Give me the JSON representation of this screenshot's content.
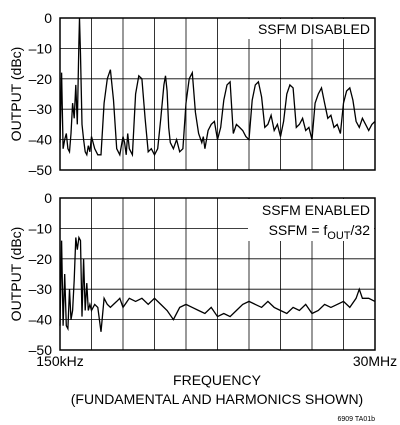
{
  "chart_data": [
    {
      "type": "line",
      "annotation": "SSFM DISABLED",
      "ylabel": "OUTPUT (dBc)",
      "ylim": [
        -50,
        0
      ],
      "yticks": [
        0,
        -10,
        -20,
        -30,
        -40,
        -50
      ],
      "ytick_labels": [
        "0",
        "–10",
        "–20",
        "–30",
        "–40",
        "–50"
      ],
      "xlim": [
        0,
        10
      ],
      "grid": true,
      "series": [
        {
          "x": [
            0,
            0.05,
            0.1,
            0.15,
            0.2,
            0.25,
            0.3,
            0.35,
            0.4,
            0.45,
            0.5,
            0.55,
            0.6,
            0.62,
            0.65,
            0.7,
            0.75,
            0.8,
            0.85,
            0.9,
            0.95,
            1.0,
            1.1,
            1.2,
            1.3,
            1.4,
            1.5,
            1.6,
            1.7,
            1.8,
            1.9,
            2.0,
            2.05,
            2.1,
            2.15,
            2.2,
            2.3,
            2.4,
            2.5,
            2.6,
            2.7,
            2.8,
            2.9,
            3.0,
            3.1,
            3.2,
            3.3,
            3.35,
            3.4,
            3.45,
            3.5,
            3.6,
            3.7,
            3.8,
            3.9,
            4.0,
            4.1,
            4.2,
            4.3,
            4.4,
            4.5,
            4.55,
            4.6,
            4.7,
            4.8,
            4.9,
            5.0,
            5.1,
            5.2,
            5.3,
            5.4,
            5.5,
            5.6,
            5.7,
            5.8,
            5.9,
            6.0,
            6.1,
            6.2,
            6.3,
            6.4,
            6.5,
            6.6,
            6.7,
            6.8,
            6.9,
            7.0,
            7.1,
            7.2,
            7.3,
            7.4,
            7.5,
            7.6,
            7.7,
            7.8,
            7.9,
            8.0,
            8.1,
            8.2,
            8.3,
            8.4,
            8.5,
            8.6,
            8.7,
            8.8,
            8.9,
            9.0,
            9.1,
            9.2,
            9.3,
            9.4,
            9.5,
            9.6,
            9.7,
            9.8,
            9.9,
            10.0
          ],
          "y": [
            -41,
            -18,
            -43,
            -40,
            -38,
            -43,
            -44,
            -38,
            -28,
            -33,
            -22,
            -35,
            -8,
            1,
            -12,
            -35,
            -40,
            -44,
            -45,
            -42,
            -44,
            -39,
            -43,
            -45,
            -45,
            -28,
            -20,
            -17,
            -27,
            -43,
            -45,
            -39,
            -41,
            -45,
            -38,
            -43,
            -45,
            -25,
            -19,
            -20,
            -33,
            -44,
            -43,
            -45,
            -43,
            -33,
            -22,
            -19,
            -24,
            -36,
            -41,
            -43,
            -40,
            -44,
            -43,
            -28,
            -20,
            -18,
            -31,
            -38,
            -41,
            -39,
            -43,
            -37,
            -35,
            -34,
            -40,
            -36,
            -27,
            -22,
            -21,
            -38,
            -35,
            -36,
            -37,
            -39,
            -40,
            -27,
            -22,
            -21,
            -26,
            -36,
            -35,
            -32,
            -37,
            -35,
            -39,
            -34,
            -25,
            -22,
            -23,
            -36,
            -35,
            -33,
            -37,
            -36,
            -40,
            -28,
            -25,
            -23,
            -28,
            -33,
            -32,
            -36,
            -35,
            -38,
            -28,
            -24,
            -23,
            -27,
            -34,
            -36,
            -33,
            -35,
            -37,
            -35,
            -34
          ]
        }
      ]
    },
    {
      "type": "line",
      "annotation": "SSFM ENABLED",
      "annotation2_main": "SSFM = f",
      "annotation2_sub": "OUT",
      "annotation2_tail": "/32",
      "ylabel": "OUTPUT (dBc)",
      "ylim": [
        -50,
        0
      ],
      "yticks": [
        0,
        -10,
        -20,
        -30,
        -40,
        -50
      ],
      "ytick_labels": [
        "0",
        "–10",
        "–20",
        "–30",
        "–40",
        "–50"
      ],
      "xlim": [
        0,
        10
      ],
      "grid": true,
      "series": [
        {
          "x": [
            0,
            0.05,
            0.1,
            0.15,
            0.2,
            0.25,
            0.3,
            0.35,
            0.4,
            0.45,
            0.5,
            0.55,
            0.6,
            0.65,
            0.7,
            0.75,
            0.8,
            0.85,
            0.9,
            0.95,
            1.0,
            1.1,
            1.2,
            1.3,
            1.4,
            1.5,
            1.6,
            1.7,
            1.8,
            1.9,
            2.0,
            2.2,
            2.4,
            2.6,
            2.8,
            3.0,
            3.2,
            3.4,
            3.6,
            3.8,
            4.0,
            4.2,
            4.4,
            4.6,
            4.8,
            5.0,
            5.2,
            5.4,
            5.6,
            5.8,
            6.0,
            6.2,
            6.4,
            6.6,
            6.8,
            7.0,
            7.2,
            7.4,
            7.6,
            7.8,
            8.0,
            8.2,
            8.4,
            8.6,
            8.8,
            9.0,
            9.2,
            9.4,
            9.5,
            9.6,
            9.8,
            10.0
          ],
          "y": [
            -42,
            -14,
            -42,
            -25,
            -42,
            -43,
            -30,
            -40,
            -37,
            -27,
            -13,
            -17,
            -13,
            -14,
            -39,
            -20,
            -37,
            -28,
            -37,
            -35,
            -37,
            -35,
            -36,
            -44,
            -33,
            -35,
            -36,
            -35,
            -34,
            -33,
            -36,
            -33,
            -34,
            -33,
            -35,
            -33,
            -35,
            -37,
            -40,
            -36,
            -35,
            -36,
            -37,
            -38,
            -36,
            -39,
            -38,
            -39,
            -37,
            -35,
            -34,
            -35,
            -36,
            -34,
            -36,
            -37,
            -38,
            -36,
            -37,
            -35,
            -38,
            -37,
            -35,
            -36,
            -35,
            -34,
            -36,
            -33,
            -30,
            -33,
            -33,
            -34
          ]
        }
      ]
    }
  ],
  "xaxis": {
    "start_label": "150kHz",
    "end_label": "30MHz",
    "title": "FREQUENCY",
    "subtitle": "(FUNDAMENTAL AND HARMONICS SHOWN)"
  },
  "figure_id": "6909 TA01b"
}
